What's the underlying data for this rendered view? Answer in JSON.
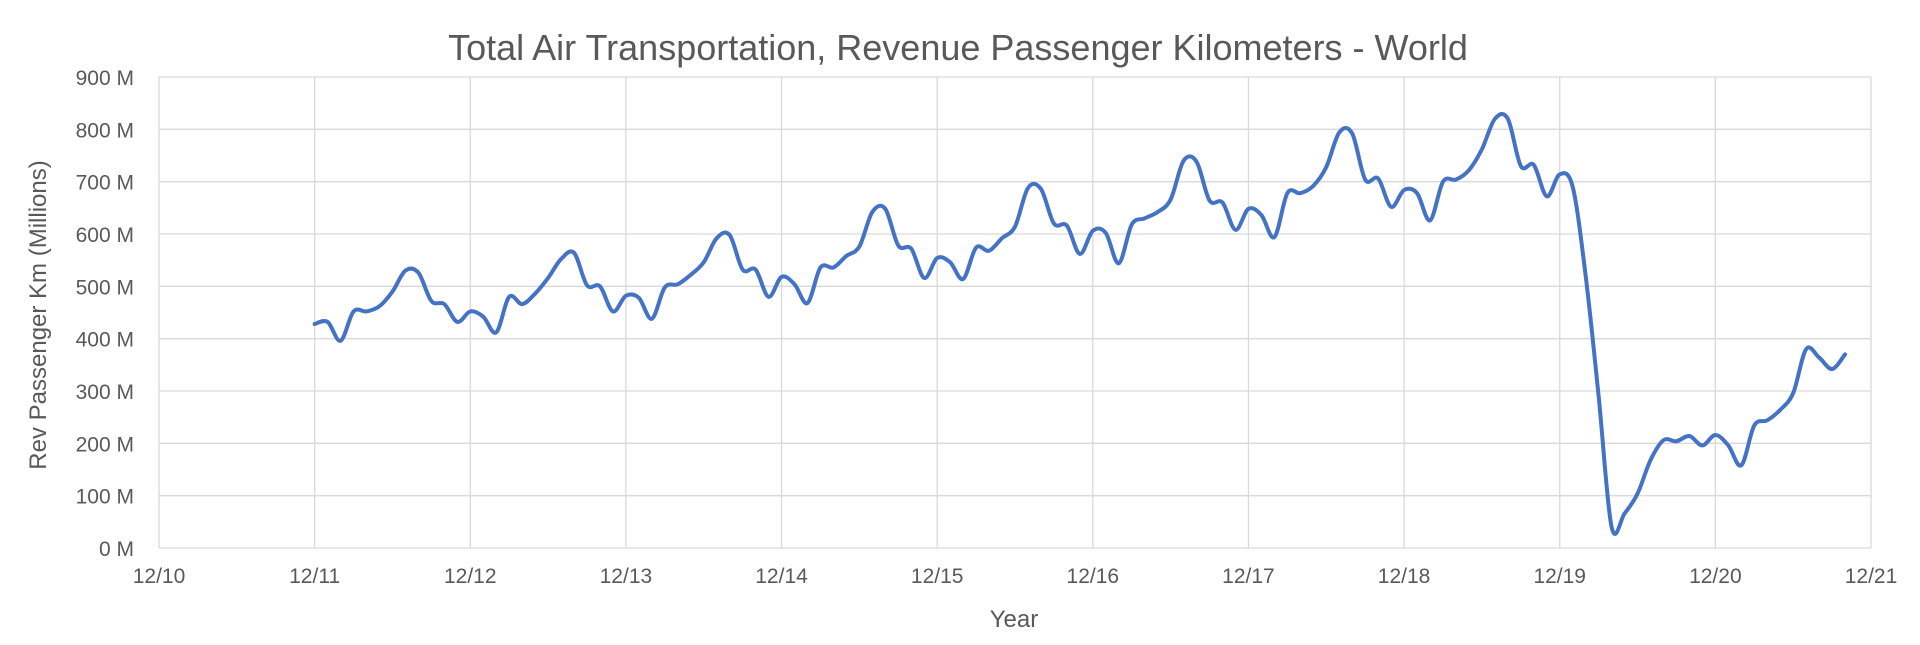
{
  "chart_data": {
    "type": "line",
    "title": "Total Air Transportation, Revenue Passenger Kilometers - World",
    "xlabel": "Year",
    "ylabel": "Rev Passenger Km  (Millions)",
    "x_range": [
      "2010-12",
      "2021-12"
    ],
    "ylim": [
      0,
      900
    ],
    "x_tick_labels": [
      "12/10",
      "12/11",
      "12/12",
      "12/13",
      "12/14",
      "12/15",
      "12/16",
      "12/17",
      "12/18",
      "12/19",
      "12/20",
      "12/21"
    ],
    "y_tick_labels": [
      "0 M",
      "100 M",
      "200 M",
      "300 M",
      "400 M",
      "500 M",
      "600 M",
      "700 M",
      "800 M",
      "900 M"
    ],
    "y_tick_values": [
      0,
      100,
      200,
      300,
      400,
      500,
      600,
      700,
      800,
      900
    ],
    "grid": true,
    "legend": "none",
    "series": [
      {
        "color": "#4472c4",
        "points": [
          [
            "2011-12",
            428
          ],
          [
            "2012-01",
            432
          ],
          [
            "2012-02",
            396
          ],
          [
            "2012-03",
            452
          ],
          [
            "2012-04",
            452
          ],
          [
            "2012-05",
            462
          ],
          [
            "2012-06",
            490
          ],
          [
            "2012-07",
            530
          ],
          [
            "2012-08",
            526
          ],
          [
            "2012-09",
            472
          ],
          [
            "2012-10",
            466
          ],
          [
            "2012-11",
            432
          ],
          [
            "2012-12",
            452
          ],
          [
            "2013-01",
            442
          ],
          [
            "2013-02",
            412
          ],
          [
            "2013-03",
            480
          ],
          [
            "2013-04",
            466
          ],
          [
            "2013-05",
            486
          ],
          [
            "2013-06",
            516
          ],
          [
            "2013-07",
            552
          ],
          [
            "2013-08",
            564
          ],
          [
            "2013-09",
            502
          ],
          [
            "2013-10",
            500
          ],
          [
            "2013-11",
            452
          ],
          [
            "2013-12",
            482
          ],
          [
            "2014-01",
            478
          ],
          [
            "2014-02",
            438
          ],
          [
            "2014-03",
            498
          ],
          [
            "2014-04",
            504
          ],
          [
            "2014-05",
            522
          ],
          [
            "2014-06",
            546
          ],
          [
            "2014-07",
            592
          ],
          [
            "2014-08",
            598
          ],
          [
            "2014-09",
            532
          ],
          [
            "2014-10",
            532
          ],
          [
            "2014-11",
            480
          ],
          [
            "2014-12",
            518
          ],
          [
            "2015-01",
            504
          ],
          [
            "2015-02",
            468
          ],
          [
            "2015-03",
            536
          ],
          [
            "2015-04",
            536
          ],
          [
            "2015-05",
            558
          ],
          [
            "2015-06",
            576
          ],
          [
            "2015-07",
            642
          ],
          [
            "2015-08",
            648
          ],
          [
            "2015-09",
            578
          ],
          [
            "2015-10",
            572
          ],
          [
            "2015-11",
            516
          ],
          [
            "2015-12",
            554
          ],
          [
            "2016-01",
            546
          ],
          [
            "2016-02",
            514
          ],
          [
            "2016-03",
            574
          ],
          [
            "2016-04",
            568
          ],
          [
            "2016-05",
            592
          ],
          [
            "2016-06",
            614
          ],
          [
            "2016-07",
            688
          ],
          [
            "2016-08",
            686
          ],
          [
            "2016-09",
            620
          ],
          [
            "2016-10",
            616
          ],
          [
            "2016-11",
            562
          ],
          [
            "2016-12",
            606
          ],
          [
            "2017-01",
            602
          ],
          [
            "2017-02",
            544
          ],
          [
            "2017-03",
            618
          ],
          [
            "2017-04",
            630
          ],
          [
            "2017-05",
            642
          ],
          [
            "2017-06",
            666
          ],
          [
            "2017-07",
            740
          ],
          [
            "2017-08",
            738
          ],
          [
            "2017-09",
            664
          ],
          [
            "2017-10",
            660
          ],
          [
            "2017-11",
            608
          ],
          [
            "2017-12",
            648
          ],
          [
            "2018-01",
            636
          ],
          [
            "2018-02",
            594
          ],
          [
            "2018-03",
            678
          ],
          [
            "2018-04",
            678
          ],
          [
            "2018-05",
            692
          ],
          [
            "2018-06",
            728
          ],
          [
            "2018-07",
            794
          ],
          [
            "2018-08",
            792
          ],
          [
            "2018-09",
            704
          ],
          [
            "2018-10",
            706
          ],
          [
            "2018-11",
            652
          ],
          [
            "2018-12",
            684
          ],
          [
            "2019-01",
            678
          ],
          [
            "2019-02",
            626
          ],
          [
            "2019-03",
            700
          ],
          [
            "2019-04",
            704
          ],
          [
            "2019-05",
            722
          ],
          [
            "2019-06",
            762
          ],
          [
            "2019-07",
            820
          ],
          [
            "2019-08",
            820
          ],
          [
            "2019-09",
            730
          ],
          [
            "2019-10",
            732
          ],
          [
            "2019-11",
            672
          ],
          [
            "2019-12",
            714
          ],
          [
            "2020-01",
            690
          ],
          [
            "2020-02",
            520
          ],
          [
            "2020-03",
            290
          ],
          [
            "2020-04",
            40
          ],
          [
            "2020-05",
            66
          ],
          [
            "2020-06",
            104
          ],
          [
            "2020-07",
            168
          ],
          [
            "2020-08",
            206
          ],
          [
            "2020-09",
            204
          ],
          [
            "2020-10",
            214
          ],
          [
            "2020-11",
            196
          ],
          [
            "2020-12",
            216
          ],
          [
            "2021-01",
            196
          ],
          [
            "2021-02",
            158
          ],
          [
            "2021-03",
            234
          ],
          [
            "2021-04",
            244
          ],
          [
            "2021-05",
            264
          ],
          [
            "2021-06",
            296
          ],
          [
            "2021-07",
            380
          ],
          [
            "2021-08",
            364
          ],
          [
            "2021-09",
            342
          ],
          [
            "2021-10",
            370
          ]
        ]
      }
    ]
  }
}
